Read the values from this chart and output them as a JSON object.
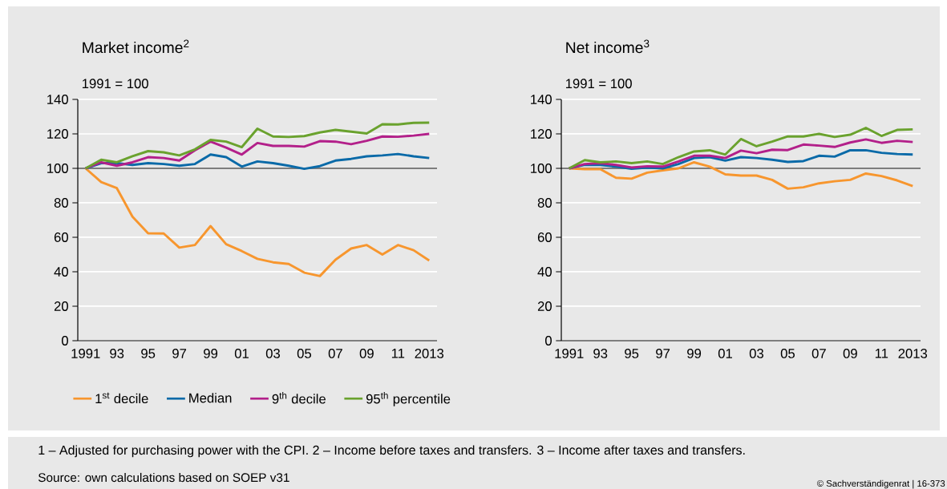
{
  "chart_data": [
    {
      "type": "line",
      "title": "Market income$^{2}$",
      "ylabel": "1991 = 100",
      "categories": [
        "1991",
        null,
        "93",
        null,
        "95",
        null,
        "97",
        null,
        "99",
        null,
        "01",
        null,
        "03",
        null,
        "05",
        null,
        "07",
        null,
        "09",
        null,
        "11",
        null,
        "2013"
      ],
      "series": [
        {
          "name": "1$^{st}$ decile",
          "color": "#f7962e",
          "values": [
            100,
            92,
            88.5,
            72,
            62.3,
            62.2,
            54,
            55.5,
            66.5,
            56,
            52,
            47.5,
            45.5,
            44.5,
            39.5,
            37.5,
            47,
            53.5,
            55.5,
            50,
            55.5,
            52.5,
            46.5
          ]
        },
        {
          "name": "Median",
          "color": "#0a6aa8",
          "values": [
            100,
            103,
            103,
            102,
            103,
            102.5,
            101.5,
            102.5,
            108,
            106.5,
            101,
            104,
            103,
            101.5,
            99.7,
            101.3,
            104.5,
            105.5,
            107,
            107.5,
            108.3,
            107,
            106
          ]
        },
        {
          "name": "9$^{th}$ decile",
          "color": "#b3208a",
          "values": [
            100,
            103.5,
            101.5,
            103.5,
            106.5,
            106,
            104.5,
            110.5,
            115.5,
            112,
            108,
            114.7,
            113,
            113,
            112.6,
            115.8,
            115.5,
            114,
            116,
            118.5,
            118.3,
            119,
            120
          ]
        },
        {
          "name": "95$^{th}$ percentile",
          "color": "#6aa22e",
          "values": [
            100,
            105,
            103.5,
            107,
            110,
            109.3,
            107.5,
            111,
            116.5,
            115.5,
            112.3,
            123,
            118.5,
            118.2,
            118.7,
            120.8,
            122.3,
            121.3,
            120.2,
            125.6,
            125.5,
            126.4,
            126.5
          ]
        }
      ],
      "ylim": [
        0,
        140
      ],
      "yticks": [
        0,
        20,
        40,
        60,
        80,
        100,
        120,
        140
      ],
      "grid": "y",
      "legend": "bottom",
      "ref_lines": [
        {
          "axis": "y",
          "value": 100,
          "color": "#000000"
        }
      ],
      "annotations": [
        "1 – Adjusted for purchasing power with the CPI.  2 – Income before taxes and transfers.  3 – Income after taxes and transfers.",
        "Source: own calculations based on SOEP v31",
        "© Sachverständigenrat | 16-373"
      ]
    },
    {
      "type": "line",
      "title": "Net income$^{3}$",
      "ylabel": "1991 = 100",
      "categories": [
        "1991",
        null,
        "93",
        null,
        "95",
        null,
        "97",
        null,
        "99",
        null,
        "01",
        null,
        "03",
        null,
        "05",
        null,
        "07",
        null,
        "09",
        null,
        "11",
        null,
        "2013"
      ],
      "series": [
        {
          "color": "#f7962e",
          "values": [
            100,
            99.5,
            99.5,
            94.5,
            94,
            97.5,
            98.8,
            100,
            103.5,
            101,
            96.5,
            95.8,
            95.8,
            93.3,
            88.2,
            89,
            91.3,
            92.5,
            93.3,
            97,
            95.5,
            93,
            89.7
          ]
        },
        {
          "color": "#0a6aa8",
          "values": [
            100,
            102,
            102,
            101,
            99.7,
            100.5,
            100,
            102.5,
            106,
            106.5,
            104.5,
            106.5,
            106,
            105,
            103.7,
            104.2,
            107.3,
            106.8,
            110.5,
            110.5,
            109,
            108.3,
            108
          ]
        },
        {
          "color": "#b3208a",
          "values": [
            100,
            102.5,
            103,
            102,
            100.5,
            101.2,
            101,
            104,
            107.3,
            107.3,
            106,
            110.3,
            108.8,
            110.8,
            110.6,
            113.8,
            113.2,
            112.4,
            115,
            116.8,
            114.8,
            116,
            115.3
          ]
        },
        {
          "color": "#6aa22e",
          "values": [
            100,
            104.8,
            103.5,
            104,
            103,
            104,
            102.5,
            106.5,
            109.8,
            110.5,
            108,
            117,
            112.8,
            115.5,
            118.5,
            118.5,
            120,
            118.2,
            119.5,
            123.5,
            118.8,
            122.3,
            122.6
          ]
        }
      ],
      "ylim": [
        0,
        140
      ],
      "yticks": [
        0,
        20,
        40,
        60,
        80,
        100,
        120,
        140
      ],
      "grid": "y",
      "ref_lines": [
        {
          "axis": "y",
          "value": 100,
          "color": "#000000"
        }
      ]
    }
  ]
}
